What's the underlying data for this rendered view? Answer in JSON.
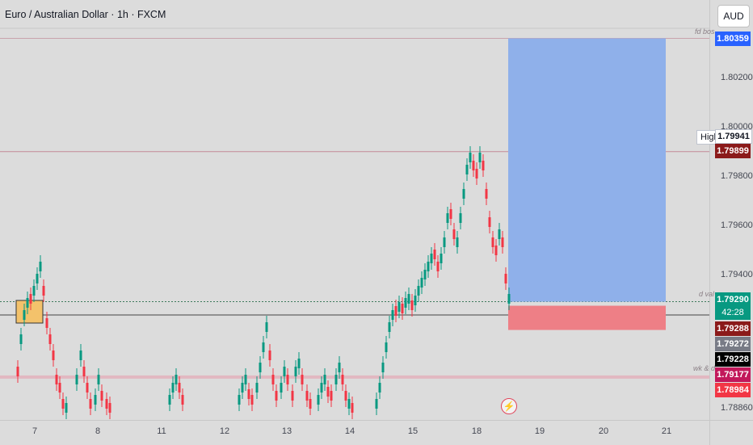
{
  "header": {
    "title": "Euro / Australian Dollar · 1h · FXCM",
    "currency": "AUD"
  },
  "chart_data": {
    "type": "candlestick",
    "symbol": "EURAUD",
    "timeframe": "1h",
    "price_ticks": [
      "1.80200",
      "1.80000",
      "1.79800",
      "1.79600",
      "1.79400",
      "1.78860"
    ],
    "time_ticks": [
      "7",
      "8",
      "11",
      "12",
      "13",
      "14",
      "15",
      "18",
      "19",
      "20",
      "21"
    ],
    "ylim": [
      1.7886,
      1.8045
    ],
    "levels": [
      {
        "label": "fd bos",
        "price": 1.80359
      },
      {
        "label": "",
        "price": 1.79899
      },
      {
        "label": "d val",
        "price": 1.7929
      },
      {
        "label": "",
        "price": 1.79228
      },
      {
        "label": "wk & d",
        "price": 1.78984
      }
    ],
    "price_tags": [
      {
        "value": "1.80359",
        "color": "#2962ff"
      },
      {
        "value": "1.79941",
        "color": "#ffffff"
      },
      {
        "value": "1.79899",
        "color": "#8b1a1a"
      },
      {
        "value": "1.79290",
        "color": "#089981"
      },
      {
        "value": "42:28",
        "color": "#089981"
      },
      {
        "value": "1.79288",
        "color": "#8b1a1a"
      },
      {
        "value": "1.79272",
        "color": "#787b86"
      },
      {
        "value": "1.79228",
        "color": "#000000"
      },
      {
        "value": "1.79177",
        "color": "#c2185b"
      },
      {
        "value": "1.78984",
        "color": "#f23645"
      }
    ],
    "high_label": "High",
    "position": {
      "type": "long",
      "entry": 1.7929,
      "target": 1.80359,
      "stop": 1.79177
    },
    "colors": {
      "up": "#089981",
      "down": "#f23645",
      "target": "#8fb0ea",
      "stop": "#ee7f86"
    }
  }
}
